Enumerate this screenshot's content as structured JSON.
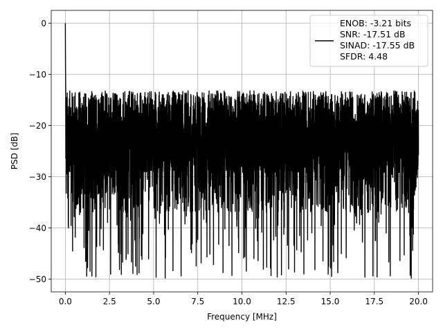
{
  "chart_data": {
    "type": "line",
    "title": "",
    "xlabel": "Frequency [MHz]",
    "ylabel": "PSD [dB]",
    "xlim": [
      -0.8,
      20.8
    ],
    "ylim": [
      -52.5,
      2.5
    ],
    "xticks": [
      0.0,
      2.5,
      5.0,
      7.5,
      10.0,
      12.5,
      15.0,
      17.5,
      20.0
    ],
    "xtick_labels": [
      "0.0",
      "2.5",
      "5.0",
      "7.5",
      "10.0",
      "12.5",
      "15.0",
      "17.5",
      "20.0"
    ],
    "yticks": [
      0,
      -10,
      -20,
      -30,
      -40,
      -50
    ],
    "ytick_labels": [
      "0",
      "−10",
      "−20",
      "−30",
      "−40",
      "−50"
    ],
    "grid": true,
    "legend_position": "top-right",
    "series": [
      {
        "name": "",
        "color": "#000000",
        "noise_floor_mean_db": -22,
        "noise_floor_range_db": [
          -50,
          -12
        ],
        "peak": {
          "x": 0.0,
          "y": 0.0
        },
        "x_range": [
          0.0,
          20.0
        ]
      }
    ],
    "legend_lines": [
      "ENOB: -3.21 bits",
      "SNR: -17.51 dB",
      "SINAD: -17.55 dB",
      "SFDR: 4.48"
    ]
  }
}
